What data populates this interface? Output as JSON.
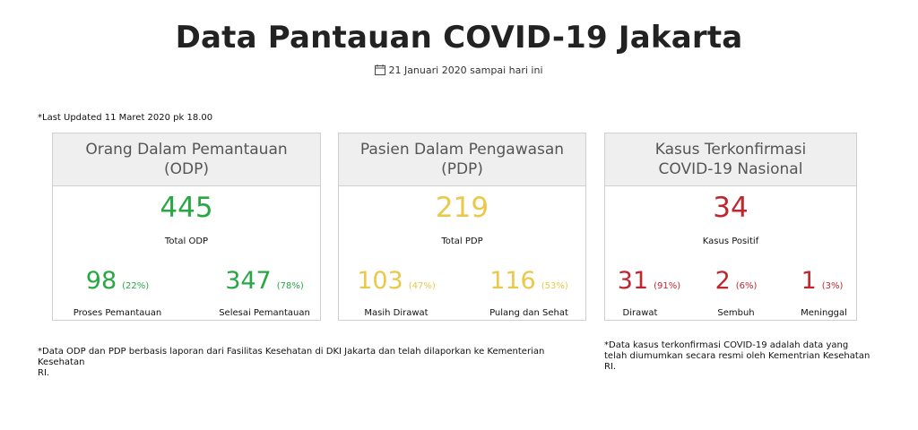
{
  "header": {
    "title": "Data Pantauan COVID-19 Jakarta",
    "date_range": "21 Januari 2020 sampai hari ini",
    "date_icon": "calendar-icon"
  },
  "last_updated": "*Last Updated 11 Maret 2020 pk 18.00",
  "colors": {
    "green": "#28a745",
    "yellow": "#e9c84a",
    "red": "#c0262d"
  },
  "odp": {
    "heading_line1": "Orang Dalam Pemantauan",
    "heading_line2": "(ODP)",
    "total": "445",
    "total_label": "Total ODP",
    "left": {
      "value": "98",
      "pct": "(22%)",
      "label": "Proses Pemantauan"
    },
    "right": {
      "value": "347",
      "pct": "(78%)",
      "label": "Selesai Pemantauan"
    }
  },
  "pdp": {
    "heading_line1": "Pasien Dalam Pengawasan",
    "heading_line2": "(PDP)",
    "total": "219",
    "total_label": "Total PDP",
    "left": {
      "value": "103",
      "pct": "(47%)",
      "label": "Masih Dirawat"
    },
    "right": {
      "value": "116",
      "pct": "(53%)",
      "label": "Pulang dan Sehat"
    }
  },
  "kasus": {
    "heading_line1": "Kasus Terkonfirmasi",
    "heading_line2": "COVID-19 Nasional",
    "total": "34",
    "total_label": "Kasus Positif",
    "a": {
      "value": "31",
      "pct": "(91%)",
      "label": "Dirawat"
    },
    "b": {
      "value": "2",
      "pct": "(6%)",
      "label": "Sembuh"
    },
    "c": {
      "value": "1",
      "pct": "(3%)",
      "label": "Meninggal"
    }
  },
  "notes": {
    "left_line1": "*Data ODP dan PDP berbasis laporan dari Fasilitas Kesehatan di DKI Jakarta dan telah dilaporkan ke Kementerian Kesehatan",
    "left_line2": "RI.",
    "right_line1": "*Data kasus terkonfirmasi COVID-19 adalah data yang",
    "right_line2": "telah diumumkan secara resmi oleh Kementrian Kesehatan",
    "right_line3": "RI."
  }
}
